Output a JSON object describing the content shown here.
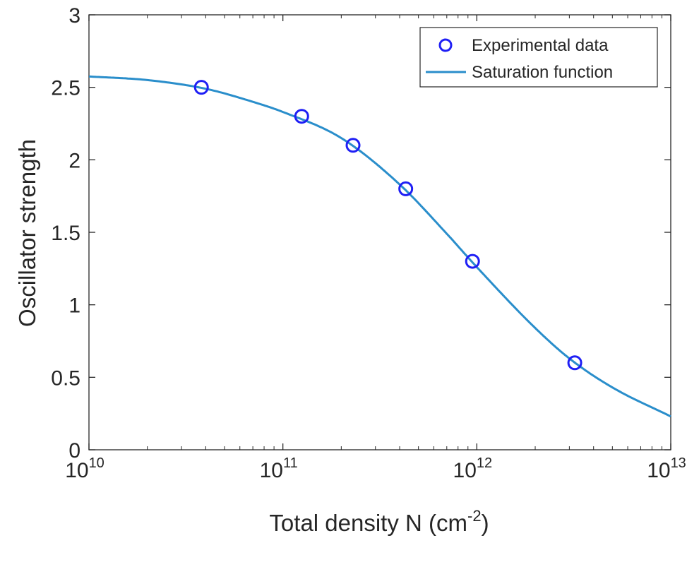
{
  "chart_data": {
    "type": "scatter",
    "xscale": "log",
    "xlim": [
      10000000000.0,
      10000000000000.0
    ],
    "ylim": [
      0,
      3
    ],
    "grid": false,
    "xlabel": "Total density N (cm",
    "xlabel_superscript": "-2",
    "xlabel_suffix": ")",
    "ylabel": "Oscillator strength",
    "x_ticks": [
      {
        "base": "10",
        "exp": "10",
        "value": 10000000000.0
      },
      {
        "base": "10",
        "exp": "11",
        "value": 100000000000.0
      },
      {
        "base": "10",
        "exp": "12",
        "value": 1000000000000.0
      },
      {
        "base": "10",
        "exp": "13",
        "value": 10000000000000.0
      }
    ],
    "y_ticks": [
      "0",
      "0.5",
      "1",
      "1.5",
      "2",
      "2.5",
      "3"
    ],
    "legend_position": "top-right",
    "series": [
      {
        "name": "Experimental data",
        "kind": "markers",
        "marker": "circle-open",
        "color": "#1f1ff5",
        "x": [
          38000000000.0,
          125000000000.0,
          230000000000.0,
          430000000000.0,
          950000000000.0,
          3200000000000.0
        ],
        "y": [
          2.5,
          2.3,
          2.1,
          1.8,
          1.3,
          0.6
        ]
      },
      {
        "name": "Saturation function",
        "kind": "line",
        "color": "#2a8ecb",
        "x": [
          10000000000.0,
          20000000000.0,
          40000000000.0,
          70000000000.0,
          100000000000.0,
          200000000000.0,
          400000000000.0,
          700000000000.0,
          1000000000000.0,
          2000000000000.0,
          3000000000000.0,
          5000000000000.0,
          10000000000000.0
        ],
        "y": [
          2.575,
          2.55,
          2.49,
          2.4,
          2.33,
          2.15,
          1.83,
          1.49,
          1.26,
          0.84,
          0.63,
          0.43,
          0.23
        ]
      }
    ]
  }
}
